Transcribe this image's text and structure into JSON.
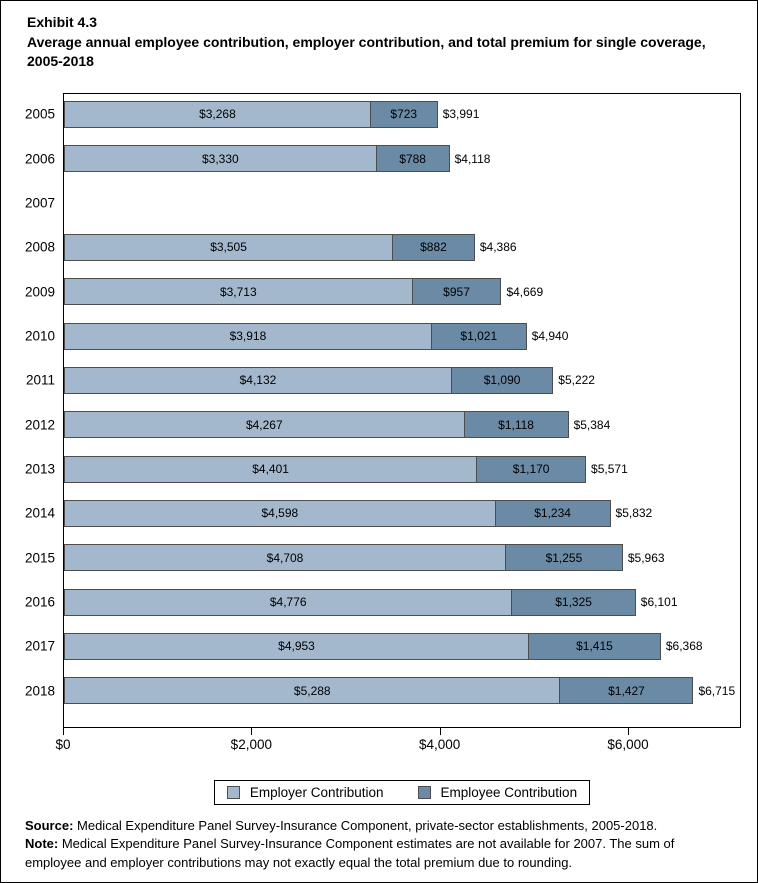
{
  "page": {
    "exhibit_label": "Exhibit 4.3",
    "title": "Average annual employee contribution, employer contribution, and total premium for single coverage, 2005-2018"
  },
  "colors": {
    "employer": "#a3b8cc",
    "employee": "#6b8aa6",
    "bar_border": "#4d4d4d",
    "axis": "#000000"
  },
  "chart_data": {
    "type": "bar",
    "orientation": "horizontal",
    "stacked": true,
    "title": "Average annual employee contribution, employer contribution, and total premium for single coverage, 2005-2018",
    "categories": [
      "2005",
      "2006",
      "2007",
      "2008",
      "2009",
      "2010",
      "2011",
      "2012",
      "2013",
      "2014",
      "2015",
      "2016",
      "2017",
      "2018"
    ],
    "series": [
      {
        "name": "Employer Contribution",
        "values": [
          3268,
          3330,
          null,
          3505,
          3713,
          3918,
          4132,
          4267,
          4401,
          4598,
          4708,
          4776,
          4953,
          5288
        ]
      },
      {
        "name": "Employee Contribution",
        "values": [
          723,
          788,
          null,
          882,
          957,
          1021,
          1090,
          1118,
          1170,
          1234,
          1255,
          1325,
          1415,
          1427
        ]
      }
    ],
    "totals": [
      3991,
      4118,
      null,
      4386,
      4669,
      4940,
      5222,
      5384,
      5571,
      5832,
      5963,
      6101,
      6368,
      6715
    ],
    "xlabel": "",
    "ylabel": "",
    "xlim": [
      0,
      7200
    ],
    "x_ticks": [
      {
        "value": 0,
        "label": "$0"
      },
      {
        "value": 2000,
        "label": "$2,000"
      },
      {
        "value": 4000,
        "label": "$4,000"
      },
      {
        "value": 6000,
        "label": "$6,000"
      }
    ],
    "grid": false,
    "legend_position": "bottom",
    "missing_year": "2007"
  },
  "footer": {
    "source_label": "Source:",
    "source_text": " Medical Expenditure Panel Survey-Insurance Component, private-sector establishments, 2005-2018.",
    "note_label": "Note:",
    "note_text": " Medical Expenditure Panel Survey-Insurance Component estimates are not available for 2007. The sum of employee and employer contributions may not exactly equal the total premium due to rounding."
  }
}
